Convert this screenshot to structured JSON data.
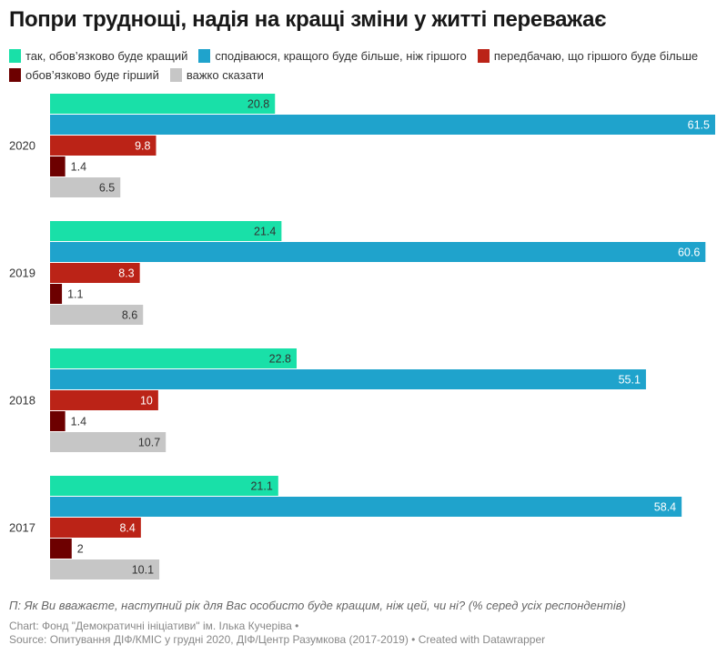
{
  "chart_data": {
    "type": "bar",
    "orientation": "horizontal",
    "title": "Попри труднощі, надія на кращі зміни у житті переважає",
    "categories": [
      "2020",
      "2019",
      "2018",
      "2017"
    ],
    "series": [
      {
        "name": "так, обов’язково буде кращий",
        "color": "#19e0a8",
        "values": [
          20.8,
          21.4,
          22.8,
          21.1
        ]
      },
      {
        "name": "сподіваюся, кращого буде більше, ніж гіршого",
        "color": "#1fa3cc",
        "values": [
          61.5,
          60.6,
          55.1,
          58.4
        ]
      },
      {
        "name": "передбачаю, що гіршого буде більше",
        "color": "#bb2317",
        "values": [
          9.8,
          8.3,
          10,
          8.4
        ]
      },
      {
        "name": "обов’язково буде гірший",
        "color": "#6d0000",
        "values": [
          1.4,
          1.1,
          1.4,
          2
        ]
      },
      {
        "name": "важко сказати",
        "color": "#c6c6c6",
        "values": [
          6.5,
          8.6,
          10.7,
          10.1
        ]
      }
    ],
    "xlim": [
      0,
      61.5
    ],
    "grid": false,
    "legend": "top"
  },
  "footer": {
    "question": "П: Як Ви вважаєте, наступний рік для Вас особисто буде кращим, ніж цей, чи ні? (% серед усіх респондентів)",
    "credit": "Chart: Фонд \"Демократичні ініціативи\" ім. Ілька Кучеріва •",
    "source": "Source: Опитування ДІФ/КМІС у грудні 2020, ДІФ/Центр Разумкова (2017-2019) • Created with Datawrapper"
  }
}
